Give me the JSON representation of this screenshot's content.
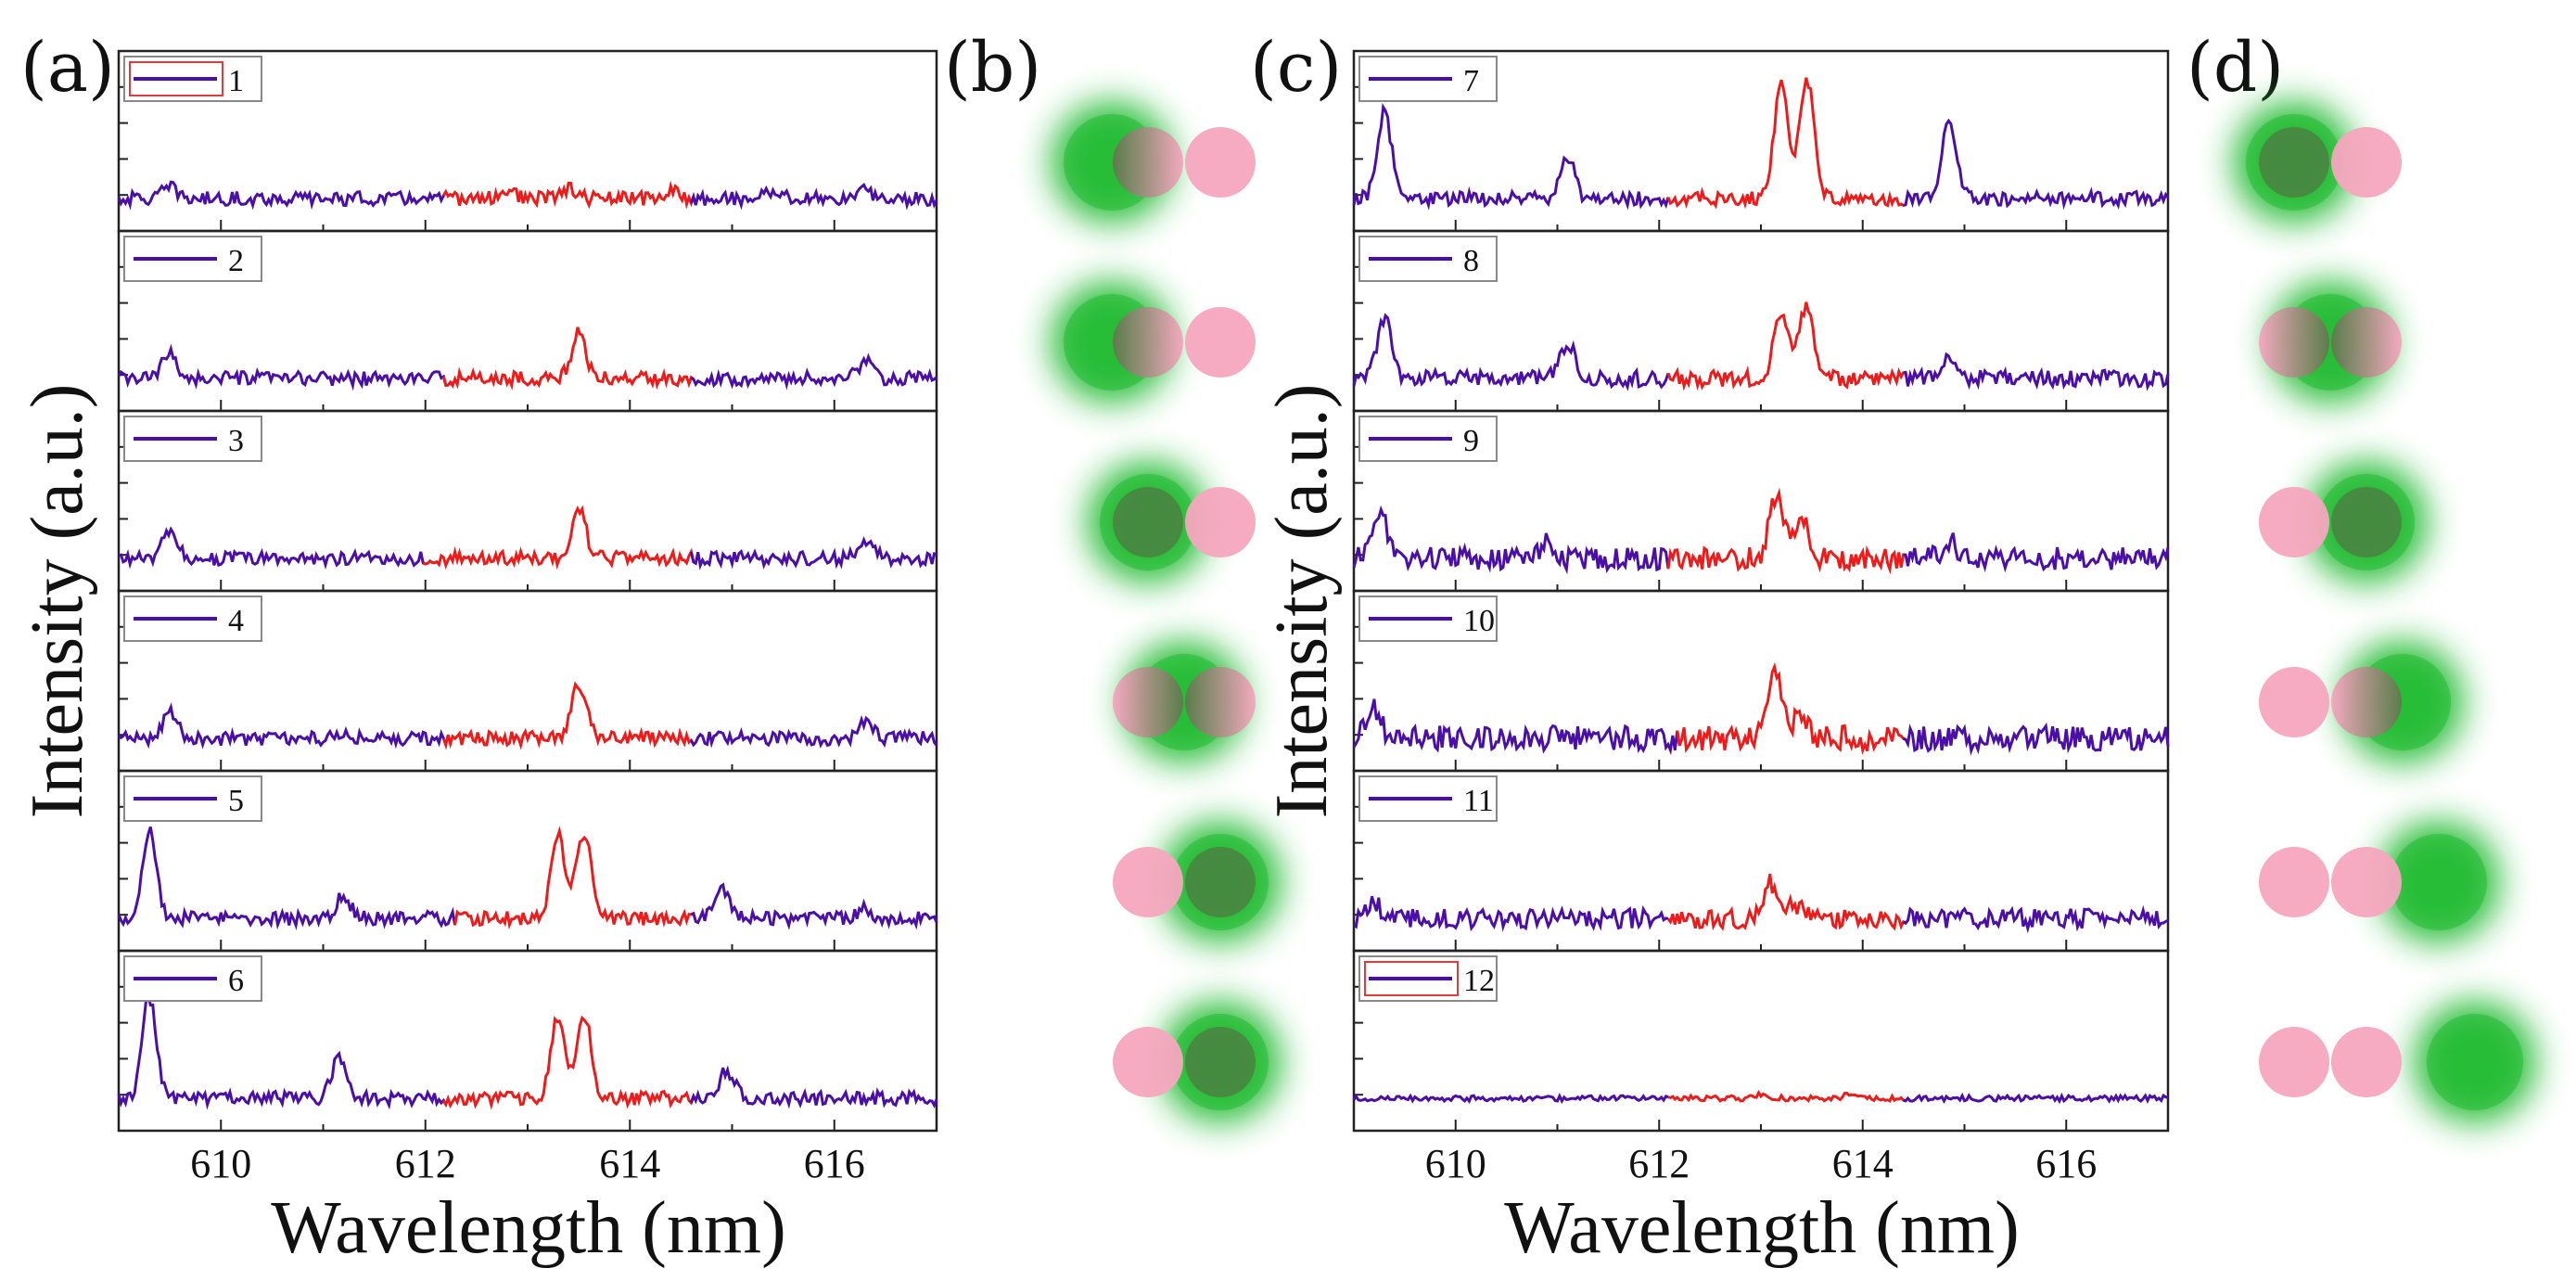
{
  "chart_data": [
    {
      "panel": "(a)",
      "type": "line",
      "stacked_spectra": true,
      "xlabel": "Wavelength (nm)",
      "ylabel": "Intensity (a.u.)",
      "xlim": [
        609,
        617
      ],
      "xticks": [
        610,
        612,
        614,
        616
      ],
      "ylim": [
        0,
        1
      ],
      "colors": {
        "spectrum": "#4b0fa8",
        "lasing_band": "#ee1b1b"
      },
      "series": [
        {
          "name": "1",
          "band": [
            612.2,
            614.6
          ],
          "peaks": [
            {
              "x": 609.5,
              "h": 0.08
            },
            {
              "x": 612.8,
              "h": 0.06
            },
            {
              "x": 613.4,
              "h": 0.07
            },
            {
              "x": 614.4,
              "h": 0.05
            },
            {
              "x": 615.4,
              "h": 0.06
            },
            {
              "x": 616.3,
              "h": 0.05
            }
          ],
          "noise": 0.05,
          "legend_boxed": true
        },
        {
          "name": "2",
          "band": [
            612.2,
            614.6
          ],
          "peaks": [
            {
              "x": 609.5,
              "h": 0.18
            },
            {
              "x": 613.5,
              "h": 0.32
            },
            {
              "x": 616.3,
              "h": 0.12
            }
          ],
          "noise": 0.05,
          "legend_boxed": false
        },
        {
          "name": "3",
          "band": [
            612.0,
            614.6
          ],
          "peaks": [
            {
              "x": 609.5,
              "h": 0.18
            },
            {
              "x": 613.5,
              "h": 0.35
            },
            {
              "x": 616.3,
              "h": 0.14
            }
          ],
          "noise": 0.05,
          "legend_boxed": false
        },
        {
          "name": "4",
          "band": [
            612.2,
            614.6
          ],
          "peaks": [
            {
              "x": 609.5,
              "h": 0.2
            },
            {
              "x": 611.2,
              "h": 0.05
            },
            {
              "x": 613.5,
              "h": 0.4
            },
            {
              "x": 616.3,
              "h": 0.12
            }
          ],
          "noise": 0.05,
          "legend_boxed": false
        },
        {
          "name": "5",
          "band": [
            612.3,
            614.6
          ],
          "peaks": [
            {
              "x": 609.3,
              "h": 0.62
            },
            {
              "x": 611.2,
              "h": 0.16
            },
            {
              "x": 613.3,
              "h": 0.58
            },
            {
              "x": 613.55,
              "h": 0.6
            },
            {
              "x": 614.9,
              "h": 0.2
            },
            {
              "x": 616.3,
              "h": 0.07
            }
          ],
          "noise": 0.05,
          "legend_boxed": false
        },
        {
          "name": "6",
          "band": [
            612.2,
            614.6
          ],
          "peaks": [
            {
              "x": 609.3,
              "h": 0.72
            },
            {
              "x": 611.15,
              "h": 0.28
            },
            {
              "x": 613.3,
              "h": 0.58
            },
            {
              "x": 613.55,
              "h": 0.6
            },
            {
              "x": 614.95,
              "h": 0.2
            }
          ],
          "noise": 0.05,
          "legend_boxed": false
        }
      ]
    },
    {
      "panel": "(c)",
      "type": "line",
      "stacked_spectra": true,
      "xlabel": "Wavelength (nm)",
      "ylabel": "Intensity (a.u.)",
      "xlim": [
        609,
        617
      ],
      "xticks": [
        610,
        612,
        614,
        616
      ],
      "ylim": [
        0,
        1
      ],
      "colors": {
        "spectrum": "#4b0fa8",
        "lasing_band": "#ee1b1b"
      },
      "series": [
        {
          "name": "7",
          "band": [
            612.1,
            614.4
          ],
          "peaks": [
            {
              "x": 609.3,
              "h": 0.62
            },
            {
              "x": 611.1,
              "h": 0.28
            },
            {
              "x": 613.2,
              "h": 0.82
            },
            {
              "x": 613.45,
              "h": 0.86
            },
            {
              "x": 614.85,
              "h": 0.55
            }
          ],
          "noise": 0.05,
          "legend_boxed": false
        },
        {
          "name": "8",
          "band": [
            612.1,
            614.4
          ],
          "peaks": [
            {
              "x": 609.3,
              "h": 0.42
            },
            {
              "x": 611.1,
              "h": 0.26
            },
            {
              "x": 613.2,
              "h": 0.48
            },
            {
              "x": 613.45,
              "h": 0.52
            },
            {
              "x": 614.85,
              "h": 0.18
            }
          ],
          "noise": 0.06,
          "legend_boxed": false
        },
        {
          "name": "9",
          "band": [
            612.1,
            614.4
          ],
          "peaks": [
            {
              "x": 609.25,
              "h": 0.35
            },
            {
              "x": 610.9,
              "h": 0.12
            },
            {
              "x": 613.15,
              "h": 0.42
            },
            {
              "x": 613.4,
              "h": 0.28
            },
            {
              "x": 614.85,
              "h": 0.12
            }
          ],
          "noise": 0.08,
          "legend_boxed": false
        },
        {
          "name": "10",
          "band": [
            612.2,
            614.4
          ],
          "peaks": [
            {
              "x": 609.2,
              "h": 0.2
            },
            {
              "x": 613.15,
              "h": 0.45
            },
            {
              "x": 613.4,
              "h": 0.18
            }
          ],
          "noise": 0.09,
          "legend_boxed": false
        },
        {
          "name": "11",
          "band": [
            612.1,
            614.4
          ],
          "peaks": [
            {
              "x": 609.2,
              "h": 0.1
            },
            {
              "x": 613.1,
              "h": 0.25
            },
            {
              "x": 613.35,
              "h": 0.1
            }
          ],
          "noise": 0.07,
          "legend_boxed": false
        },
        {
          "name": "12",
          "band": [
            612.1,
            614.4
          ],
          "peaks": [
            {
              "x": 613.0,
              "h": 0.03
            },
            {
              "x": 613.9,
              "h": 0.04
            }
          ],
          "noise": 0.02,
          "legend_boxed": true
        }
      ]
    }
  ],
  "panels": {
    "a": "(a)",
    "b": "(b)",
    "c": "(c)",
    "d": "(d)"
  },
  "schematics": {
    "colors": {
      "pumped": "#22bb33",
      "resonator": "#f5a6bf"
    },
    "b_pump_offsets": [
      -1.0,
      -1.0,
      -0.5,
      0.0,
      0.5,
      0.5
    ],
    "d_pump_offsets": [
      -0.5,
      0.0,
      0.5,
      1.0,
      1.5,
      2.0
    ]
  }
}
